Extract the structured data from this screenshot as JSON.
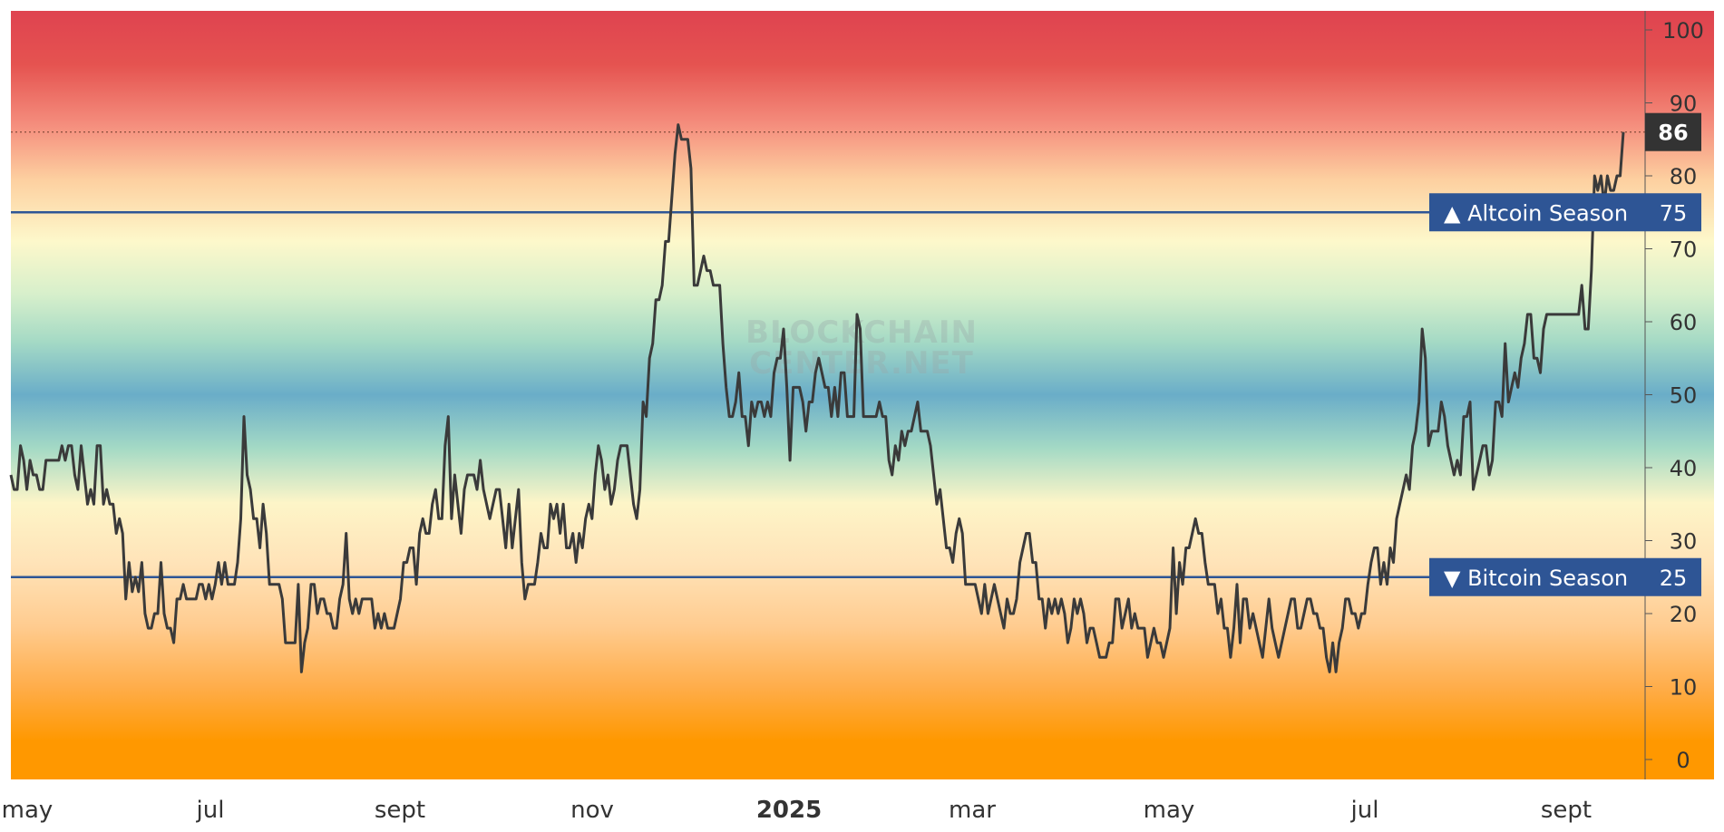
{
  "chart_data": {
    "type": "line",
    "title": "",
    "xlabel": "",
    "ylabel": "",
    "ylim": [
      0,
      100
    ],
    "y_ticks": [
      "0",
      "10",
      "20",
      "30",
      "40",
      "50",
      "60",
      "70",
      "80",
      "90",
      "100"
    ],
    "x_ticks": [
      {
        "label": "may",
        "bold": false
      },
      {
        "label": "jul",
        "bold": false
      },
      {
        "label": "sept",
        "bold": false
      },
      {
        "label": "nov",
        "bold": false
      },
      {
        "label": "2025",
        "bold": true
      },
      {
        "label": "mar",
        "bold": false
      },
      {
        "label": "may",
        "bold": false
      },
      {
        "label": "jul",
        "bold": false
      },
      {
        "label": "sept",
        "bold": false
      }
    ],
    "values": [
      39,
      37,
      37,
      43,
      41,
      37,
      41,
      39,
      39,
      37,
      37,
      41,
      41,
      41,
      41,
      41,
      43,
      41,
      43,
      43,
      39,
      37,
      43,
      39,
      35,
      37,
      35,
      43,
      43,
      35,
      37,
      35,
      35,
      31,
      33,
      31,
      22,
      27,
      23,
      25,
      23,
      27,
      20,
      18,
      18,
      20,
      20,
      27,
      20,
      18,
      18,
      16,
      22,
      22,
      24,
      22,
      22,
      22,
      22,
      24,
      24,
      22,
      24,
      22,
      24,
      27,
      24,
      27,
      24,
      24,
      24,
      27,
      33,
      47,
      39,
      37,
      33,
      33,
      29,
      35,
      31,
      24,
      24,
      24,
      24,
      22,
      16,
      16,
      16,
      16,
      24,
      12,
      16,
      18,
      24,
      24,
      20,
      22,
      22,
      20,
      20,
      18,
      18,
      22,
      24,
      31,
      22,
      20,
      22,
      20,
      22,
      22,
      22,
      22,
      18,
      20,
      18,
      20,
      18,
      18,
      18,
      20,
      22,
      27,
      27,
      29,
      29,
      24,
      31,
      33,
      31,
      31,
      35,
      37,
      33,
      33,
      43,
      47,
      33,
      39,
      35,
      31,
      37,
      39,
      39,
      39,
      37,
      41,
      37,
      35,
      33,
      35,
      37,
      37,
      33,
      29,
      35,
      29,
      33,
      37,
      27,
      22,
      24,
      24,
      24,
      27,
      31,
      29,
      29,
      35,
      33,
      35,
      31,
      35,
      29,
      29,
      31,
      27,
      31,
      29,
      33,
      35,
      33,
      39,
      43,
      41,
      37,
      39,
      35,
      37,
      41,
      43,
      43,
      43,
      39,
      35,
      33,
      37,
      49,
      47,
      55,
      57,
      63,
      63,
      65,
      71,
      71,
      77,
      83,
      87,
      85,
      85,
      85,
      81,
      65,
      65,
      67,
      69,
      67,
      67,
      65,
      65,
      65,
      57,
      51,
      47,
      47,
      49,
      53,
      47,
      47,
      43,
      49,
      47,
      49,
      49,
      47,
      49,
      47,
      53,
      55,
      55,
      59,
      51,
      41,
      51,
      51,
      51,
      49,
      45,
      49,
      49,
      53,
      55,
      53,
      51,
      51,
      47,
      51,
      47,
      53,
      53,
      47,
      47,
      47,
      61,
      59,
      47,
      47,
      47,
      47,
      47,
      49,
      47,
      47,
      41,
      39,
      43,
      41,
      45,
      43,
      45,
      45,
      47,
      49,
      45,
      45,
      45,
      43,
      39,
      35,
      37,
      33,
      29,
      29,
      27,
      31,
      33,
      31,
      24,
      24,
      24,
      24,
      22,
      20,
      24,
      20,
      22,
      24,
      22,
      20,
      18,
      22,
      20,
      20,
      22,
      27,
      29,
      31,
      31,
      27,
      27,
      22,
      22,
      18,
      22,
      20,
      22,
      20,
      22,
      20,
      16,
      18,
      22,
      20,
      22,
      20,
      16,
      18,
      18,
      16,
      14,
      14,
      14,
      16,
      16,
      22,
      22,
      18,
      20,
      22,
      18,
      20,
      18,
      18,
      18,
      14,
      16,
      18,
      16,
      16,
      14,
      16,
      18,
      29,
      20,
      27,
      24,
      29,
      29,
      31,
      33,
      31,
      31,
      27,
      24,
      24,
      24,
      20,
      22,
      18,
      18,
      14,
      18,
      24,
      16,
      22,
      22,
      18,
      20,
      18,
      16,
      14,
      18,
      22,
      18,
      16,
      14,
      16,
      18,
      20,
      22,
      22,
      18,
      18,
      20,
      22,
      22,
      20,
      20,
      18,
      18,
      14,
      12,
      16,
      12,
      16,
      18,
      22,
      22,
      20,
      20,
      18,
      20,
      20,
      24,
      27,
      29,
      29,
      24,
      27,
      24,
      29,
      27,
      33,
      35,
      37,
      39,
      37,
      43,
      45,
      49,
      59,
      55,
      43,
      45,
      45,
      45,
      49,
      47,
      43,
      41,
      39,
      41,
      39,
      47,
      47,
      49,
      37,
      39,
      41,
      43,
      43,
      39,
      41,
      49,
      49,
      47,
      57,
      49,
      51,
      53,
      51,
      55,
      57,
      61,
      61,
      55,
      55,
      53,
      59,
      61,
      61,
      61,
      61,
      61,
      61,
      61,
      61,
      61,
      61,
      61,
      65,
      59,
      59,
      67,
      80,
      78,
      80,
      76,
      80,
      78,
      78,
      80,
      80,
      86
    ],
    "current_value": "86",
    "reference_lines": [
      {
        "label": "▲ Altcoin Season",
        "value": "75",
        "color": "#2e5595"
      },
      {
        "label": "▼ Bitcoin Season",
        "value": "25",
        "color": "#2e5595"
      }
    ],
    "watermark": [
      "BLOCKCHAIN",
      "CENTER.NET"
    ],
    "colors": {
      "line": "#3a3a3a",
      "reference": "#2e5595",
      "price_tag": "#333333",
      "band_red": "#df4350",
      "band_orange": "#ff9800",
      "band_yellow": "#fdf8cb",
      "band_blue": "#6aadc8",
      "band_green": "#a5dac5"
    },
    "grid": false,
    "legend": "none"
  }
}
